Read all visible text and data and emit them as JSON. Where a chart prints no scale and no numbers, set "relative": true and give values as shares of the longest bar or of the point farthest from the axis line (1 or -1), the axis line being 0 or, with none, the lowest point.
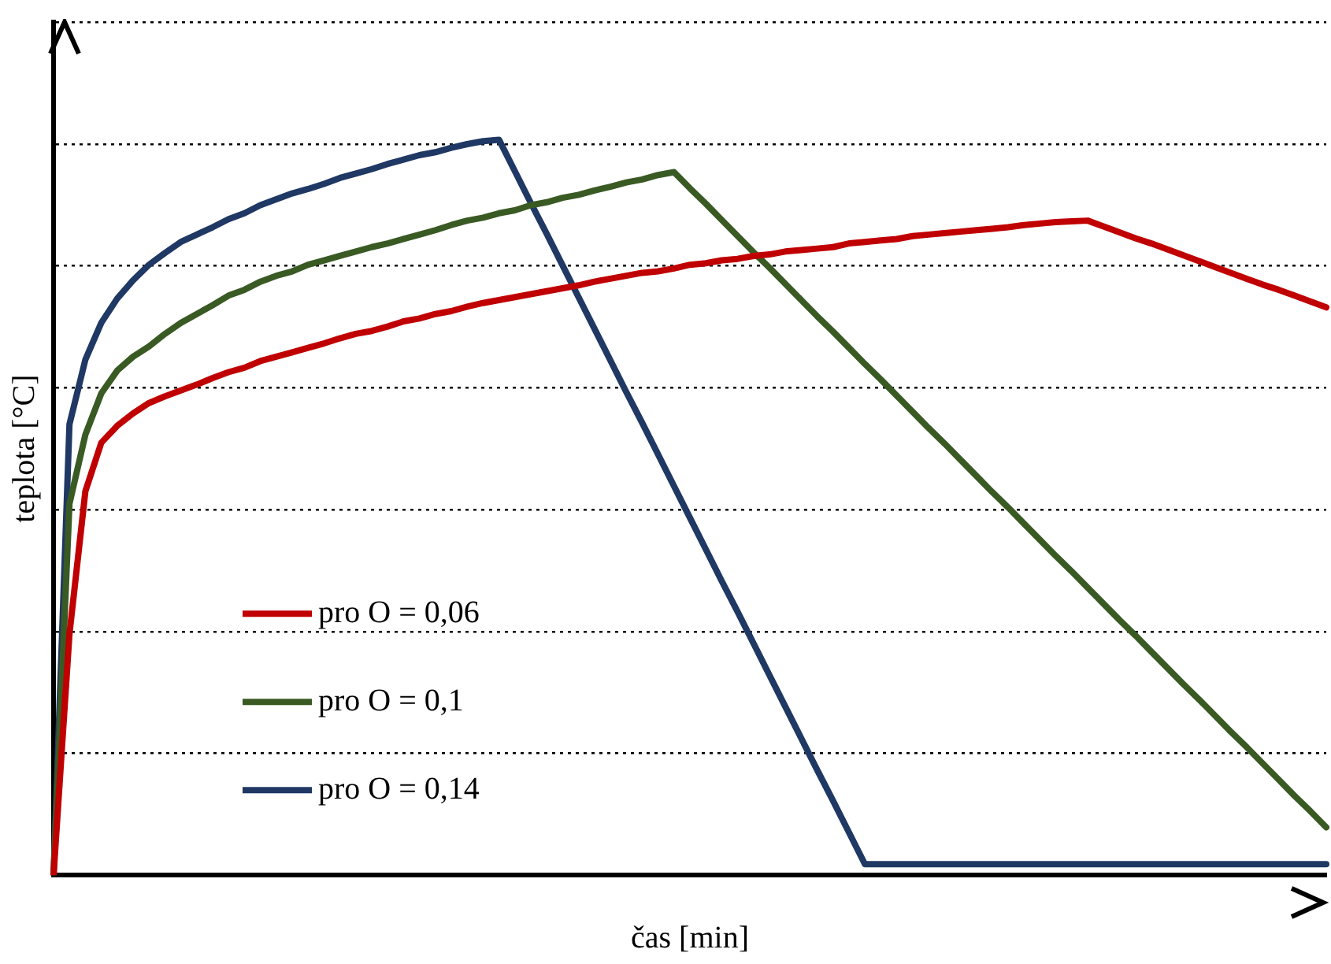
{
  "chart_data": {
    "type": "line",
    "relative": true,
    "xlabel": "čas [min]",
    "ylabel": "teplota [°C]",
    "grid": "y",
    "legend": "bottom left",
    "marker": "none",
    "line_style": "solid",
    "categories": [
      null,
      null,
      null,
      null,
      null,
      null,
      null,
      null,
      null,
      null,
      null,
      null,
      null,
      null,
      null,
      null,
      null,
      null,
      null,
      null,
      null,
      null,
      null,
      null,
      null,
      null,
      null,
      null,
      null,
      null,
      null,
      null,
      null,
      null,
      null,
      null,
      null,
      null,
      null,
      null,
      null,
      null,
      null,
      null,
      null,
      null,
      null,
      null,
      null,
      null,
      null,
      null,
      null,
      null,
      null,
      null,
      null,
      null,
      null,
      null,
      null,
      null,
      null,
      null,
      null,
      null,
      null,
      null,
      null,
      null,
      null,
      null,
      null,
      null,
      null,
      null,
      null,
      null,
      null,
      null,
      null
    ],
    "series": [
      {
        "name": "pro O = 0,06",
        "color": "#c00000",
        "values": [
          0,
          0.328,
          0.522,
          0.588,
          0.611,
          0.628,
          0.642,
          0.651,
          0.659,
          0.667,
          0.676,
          0.684,
          0.69,
          0.699,
          0.705,
          0.711,
          0.717,
          0.723,
          0.73,
          0.736,
          0.74,
          0.746,
          0.753,
          0.757,
          0.763,
          0.767,
          0.773,
          0.778,
          0.782,
          0.786,
          0.79,
          0.794,
          0.798,
          0.802,
          0.807,
          0.811,
          0.815,
          0.819,
          0.821,
          0.825,
          0.83,
          0.832,
          0.836,
          0.838,
          0.842,
          0.844,
          0.848,
          0.85,
          0.852,
          0.854,
          0.859,
          0.861,
          0.863,
          0.865,
          0.869,
          0.871,
          0.873,
          0.875,
          0.877,
          0.879,
          0.881,
          0.884,
          0.886,
          0.888,
          0.889,
          0.89,
          0.882,
          0.874,
          0.866,
          0.859,
          0.851,
          0.843,
          0.835,
          0.827,
          0.819,
          0.811,
          0.803,
          0.796,
          0.788,
          0.78,
          0.772
        ]
      },
      {
        "name": "pro O = 0,1",
        "color": "#3a5a24",
        "values": [
          0,
          0.505,
          0.599,
          0.655,
          0.686,
          0.705,
          0.719,
          0.736,
          0.751,
          0.763,
          0.775,
          0.788,
          0.796,
          0.807,
          0.815,
          0.821,
          0.83,
          0.836,
          0.842,
          0.848,
          0.854,
          0.859,
          0.865,
          0.871,
          0.877,
          0.884,
          0.89,
          0.894,
          0.9,
          0.904,
          0.911,
          0.915,
          0.921,
          0.925,
          0.931,
          0.936,
          0.942,
          0.946,
          0.952,
          0.956,
          0.934,
          0.913,
          0.891,
          0.869,
          0.847,
          0.826,
          0.804,
          0.782,
          0.76,
          0.739,
          0.717,
          0.695,
          0.674,
          0.652,
          0.63,
          0.608,
          0.587,
          0.565,
          0.543,
          0.521,
          0.5,
          0.478,
          0.456,
          0.434,
          0.413,
          0.391,
          0.369,
          0.347,
          0.326,
          0.304,
          0.282,
          0.26,
          0.239,
          0.217,
          0.195,
          0.174,
          0.152,
          0.13,
          0.108,
          0.087,
          0.065
        ]
      },
      {
        "name": "pro O = 0,14",
        "color": "#1f3864",
        "values": [
          0,
          0.613,
          0.701,
          0.751,
          0.784,
          0.809,
          0.83,
          0.846,
          0.861,
          0.871,
          0.881,
          0.892,
          0.9,
          0.911,
          0.919,
          0.927,
          0.933,
          0.94,
          0.948,
          0.954,
          0.96,
          0.967,
          0.973,
          0.979,
          0.983,
          0.989,
          0.994,
          0.998,
          1,
          0.957,
          0.914,
          0.872,
          0.829,
          0.786,
          0.743,
          0.7,
          0.657,
          0.615,
          0.572,
          0.529,
          0.486,
          0.443,
          0.4,
          0.358,
          0.315,
          0.272,
          0.229,
          0.186,
          0.143,
          0.101,
          0.058,
          0.015,
          0.015,
          0.015,
          0.015,
          0.015,
          0.015,
          0.015,
          0.015,
          0.015,
          0.015,
          0.015,
          0.015,
          0.015,
          0.015,
          0.015,
          0.015,
          0.015,
          0.015,
          0.015,
          0.015,
          0.015,
          0.015,
          0.015,
          0.015,
          0.015,
          0.015,
          0.015,
          0.015,
          0.015,
          0.015
        ]
      }
    ]
  }
}
